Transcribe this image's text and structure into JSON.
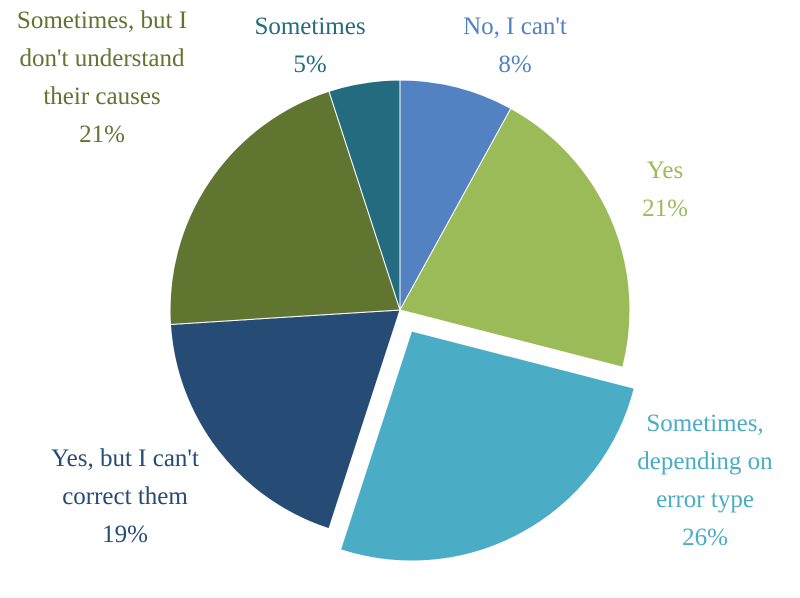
{
  "chart_data": {
    "type": "pie",
    "categories": [
      "No, I can't",
      "Yes",
      "Sometimes, depending on error type",
      "Yes, but I can't correct them",
      "Sometimes, but I don't understand their causes",
      "Sometimes"
    ],
    "values": [
      8,
      21,
      26,
      19,
      21,
      5
    ],
    "value_labels": [
      "8%",
      "21%",
      "26%",
      "19%",
      "21%",
      "5%"
    ],
    "colors": [
      "#5282c1",
      "#9bbb59",
      "#4bacc6",
      "#264b75",
      "#5f7530",
      "#256b80"
    ],
    "exploded": [
      2
    ]
  }
}
